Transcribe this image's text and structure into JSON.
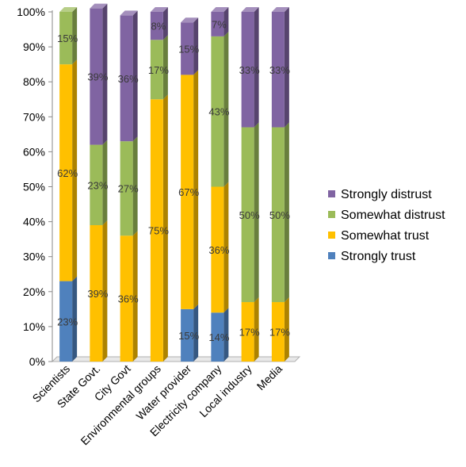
{
  "chart_data": {
    "type": "bar",
    "stacked": true,
    "percent_stacked": true,
    "categories": [
      "Scientists",
      "State Govt.",
      "City Govt",
      "Environmental groups",
      "Water provider",
      "Electricity company",
      "Local industry",
      "Media"
    ],
    "series": [
      {
        "name": "Strongly trust",
        "color": "#4f81bd",
        "values": [
          23,
          0,
          0,
          0,
          15,
          14,
          0,
          0
        ],
        "labels": [
          "23%",
          "",
          "",
          "",
          "15%",
          "14%",
          "",
          ""
        ]
      },
      {
        "name": "Somewhat trust",
        "color": "#ffc000",
        "values": [
          62,
          39,
          36,
          75,
          67,
          36,
          17,
          17
        ],
        "labels": [
          "62%",
          "39%",
          "36%",
          "75%",
          "67%",
          "36%",
          "17%",
          "17%"
        ]
      },
      {
        "name": "Somewhat distrust",
        "color": "#9bbb59",
        "values": [
          15,
          23,
          27,
          17,
          0,
          43,
          50,
          50
        ],
        "labels": [
          "15%",
          "23%",
          "27%",
          "17%",
          "",
          "43%",
          "50%",
          "50%"
        ]
      },
      {
        "name": "Strongly distrust",
        "color": "#8064a2",
        "values": [
          0,
          39,
          36,
          8,
          15,
          7,
          33,
          33
        ],
        "labels": [
          "",
          "39%",
          "36%",
          "8%",
          "15%",
          "7%",
          "33%",
          "33%"
        ]
      }
    ],
    "y_ticks": [
      "0%",
      "10%",
      "20%",
      "30%",
      "40%",
      "50%",
      "60%",
      "70%",
      "80%",
      "90%",
      "100%"
    ],
    "ylim": [
      0,
      100
    ],
    "grid": false,
    "legend_position": "right",
    "legend_order": [
      "Strongly distrust",
      "Somewhat distrust",
      "Somewhat trust",
      "Strongly trust"
    ],
    "title": "",
    "xlabel": "",
    "ylabel": ""
  }
}
